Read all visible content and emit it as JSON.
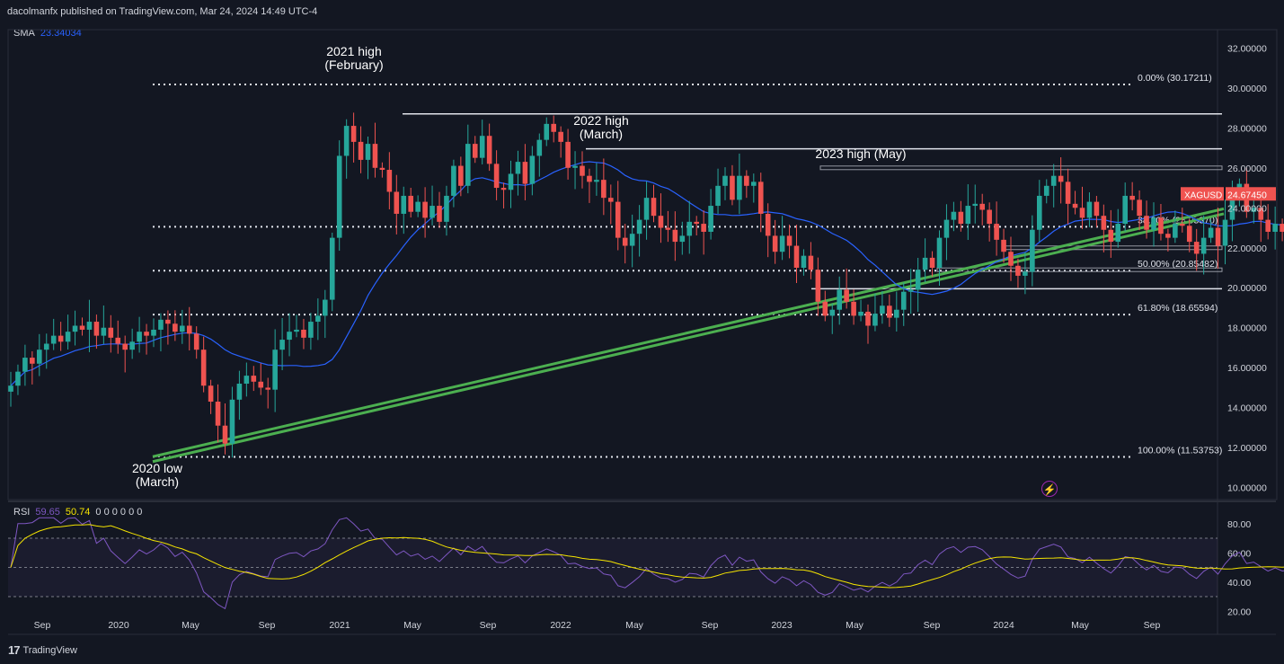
{
  "header": {
    "published": "dacolmanfx published on TradingView.com, Mar 24, 2024 14:49 UTC-4"
  },
  "sma": {
    "label": "SMA",
    "value": "23.34034",
    "color": "#2962ff"
  },
  "rsi": {
    "label": "RSI",
    "v1": "59.65",
    "v2": "50.74",
    "zeros": "0 0 0 0 0 0",
    "line_color": "#7e57c2",
    "signal_color": "#f5e400"
  },
  "footer": {
    "brand": "TradingView"
  },
  "colors": {
    "up": "#26a69a",
    "down": "#ef5350",
    "background": "#131722",
    "trendline": "#4caf50"
  },
  "chart_data": {
    "type": "candlestick",
    "symbol": "XAGUSD",
    "last_price": "24.67450",
    "price_axis": {
      "range": [
        9.4,
        32.6
      ],
      "ticks": [
        "32.00000",
        "30.00000",
        "28.00000",
        "26.00000",
        "24.00000",
        "22.00000",
        "20.00000",
        "18.00000",
        "16.00000",
        "14.00000",
        "12.00000",
        "10.00000"
      ]
    },
    "rsi_axis": {
      "range": [
        14,
        86
      ],
      "ticks": [
        "80.00",
        "60.00",
        "40.00",
        "20.00"
      ],
      "bands": [
        70,
        50,
        30
      ]
    },
    "time_axis": {
      "labels": [
        "Sep",
        "2020",
        "May",
        "Sep",
        "2021",
        "May",
        "Sep",
        "2022",
        "May",
        "Sep",
        "2023",
        "May",
        "Sep",
        "2024",
        "May",
        "Sep"
      ]
    },
    "fib_levels": [
      {
        "label": "0.00% (30.17211)",
        "price": 30.17211
      },
      {
        "label": "38.20% (23.05370)",
        "price": 23.0537
      },
      {
        "label": "50.00% (20.85482)",
        "price": 20.85482
      },
      {
        "label": "61.80% (18.65594)",
        "price": 18.65594
      },
      {
        "label": "100.00% (11.53753)",
        "price": 11.53753
      }
    ],
    "horizontal_levels": [
      28.7,
      26.95,
      26.0,
      19.95
    ],
    "annotations": [
      {
        "line1": "2021 high",
        "line2": "(February)"
      },
      {
        "line1": "2022 high",
        "line2": "(March)"
      },
      {
        "line1": "2023 high (May)",
        "line2": ""
      },
      {
        "line1": "2020 low",
        "line2": "(March)"
      }
    ],
    "closes": [
      15.1,
      15.8,
      16.5,
      16.2,
      16.9,
      17.2,
      17.6,
      17.3,
      17.8,
      18.1,
      17.9,
      18.3,
      17.6,
      18.0,
      17.5,
      17.2,
      16.9,
      17.3,
      17.8,
      17.6,
      17.9,
      18.4,
      18.2,
      17.8,
      18.1,
      17.7,
      16.9,
      15.1,
      14.3,
      13.1,
      12.2,
      14.4,
      15.2,
      15.6,
      15.3,
      15.0,
      14.9,
      16.9,
      17.4,
      17.8,
      17.9,
      17.5,
      18.3,
      18.6,
      19.4,
      22.5,
      26.6,
      28.1,
      27.3,
      26.4,
      27.2,
      26.0,
      25.9,
      24.8,
      23.7,
      24.6,
      23.8,
      24.3,
      23.5,
      24.1,
      23.3,
      24.6,
      26.1,
      25.1,
      27.2,
      26.5,
      27.6,
      26.2,
      25.0,
      24.9,
      25.7,
      26.3,
      25.2,
      26.6,
      27.4,
      28.2,
      27.8,
      27.3,
      26.0,
      26.1,
      25.6,
      25.3,
      25.4,
      24.5,
      24.3,
      22.5,
      22.1,
      22.7,
      23.4,
      24.5,
      23.6,
      23.0,
      22.9,
      22.3,
      22.6,
      23.3,
      23.2,
      22.8,
      24.1,
      25.1,
      25.6,
      24.4,
      25.6,
      25.1,
      25.3,
      23.7,
      22.6,
      21.8,
      22.6,
      22.1,
      21.0,
      21.6,
      20.9,
      19.3,
      18.6,
      18.9,
      19.9,
      19.3,
      18.6,
      18.8,
      18.1,
      18.7,
      19.1,
      18.5,
      18.9,
      19.8,
      19.9,
      20.9,
      21.5,
      21.0,
      22.5,
      23.4,
      23.8,
      23.2,
      24.1,
      24.2,
      23.9,
      23.2,
      22.4,
      21.8,
      21.1,
      20.6,
      20.8,
      22.9,
      24.6,
      25.1,
      25.6,
      25.3,
      24.2,
      24.0,
      23.5,
      24.3,
      23.6,
      22.9,
      22.3,
      23.2,
      24.6,
      24.4,
      23.6,
      22.9,
      23.5,
      22.7,
      22.5,
      23.2,
      23.1,
      22.3,
      21.7,
      22.5,
      23.0,
      22.1,
      23.4,
      24.6,
      25.2,
      23.8,
      24.0,
      23.4,
      22.8,
      23.2,
      22.8,
      22.9,
      22.5,
      22.9,
      23.4,
      24.2,
      25.0,
      24.67
    ]
  }
}
